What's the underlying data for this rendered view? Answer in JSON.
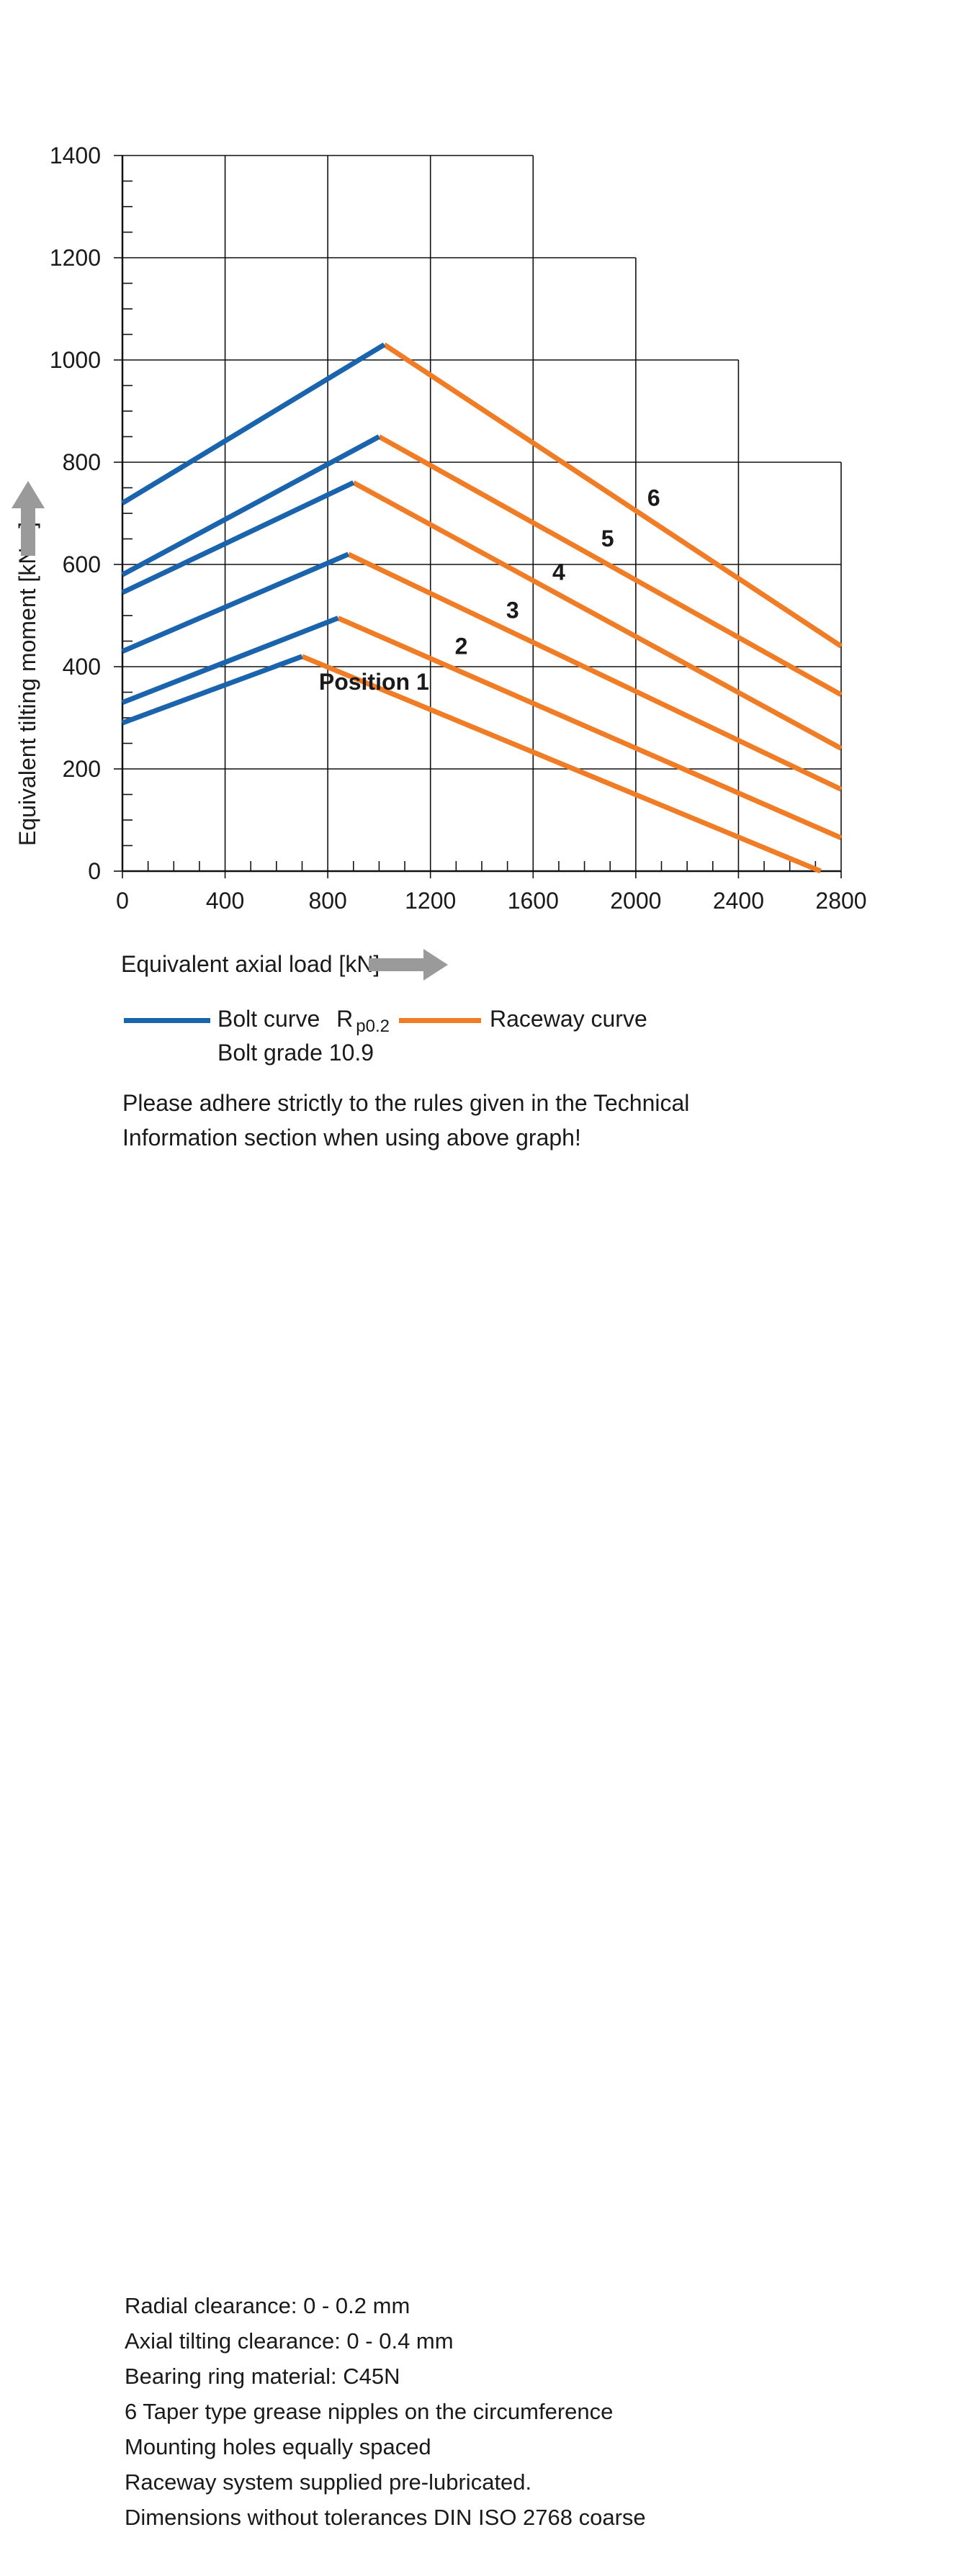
{
  "chart_data": {
    "type": "line",
    "xlabel": "Equivalent axial load [kN]",
    "ylabel": "Equivalent tilting moment [kNm]",
    "xlim": [
      0,
      2800
    ],
    "ylim": [
      0,
      1400
    ],
    "x_ticks": [
      "0",
      "400",
      "800",
      "1200",
      "1600",
      "2000",
      "2400",
      "2800"
    ],
    "y_ticks": [
      "0",
      "200",
      "400",
      "600",
      "800",
      "1000",
      "1200",
      "1400"
    ],
    "grid": true,
    "stepped_grid_top_right": true,
    "colors": {
      "bolt": "#1a63ad",
      "raceway": "#f07d26",
      "grid": "#111111",
      "arrow": "#9a9a9a"
    },
    "bolt_series": [
      {
        "name": "Bolt curve",
        "points": [
          [
            0,
            290
          ],
          [
            700,
            420
          ]
        ]
      },
      {
        "name": "Bolt curve",
        "points": [
          [
            0,
            330
          ],
          [
            840,
            495
          ]
        ]
      },
      {
        "name": "Bolt curve",
        "points": [
          [
            0,
            430
          ],
          [
            880,
            620
          ]
        ]
      },
      {
        "name": "Bolt curve",
        "points": [
          [
            0,
            545
          ],
          [
            900,
            760
          ]
        ]
      },
      {
        "name": "Bolt curve",
        "points": [
          [
            0,
            580
          ],
          [
            1000,
            850
          ]
        ]
      },
      {
        "name": "Bolt curve",
        "points": [
          [
            0,
            720
          ],
          [
            1020,
            1030
          ]
        ]
      }
    ],
    "raceway_series": [
      {
        "name": "Raceway curve",
        "label": "Position 1",
        "points": [
          [
            700,
            420
          ],
          [
            2720,
            0
          ]
        ]
      },
      {
        "name": "Raceway curve",
        "label": "2",
        "points": [
          [
            840,
            495
          ],
          [
            2800,
            65
          ]
        ]
      },
      {
        "name": "Raceway curve",
        "label": "3",
        "points": [
          [
            880,
            620
          ],
          [
            2800,
            160
          ]
        ]
      },
      {
        "name": "Raceway curve",
        "label": "4",
        "points": [
          [
            900,
            760
          ],
          [
            2800,
            240
          ]
        ]
      },
      {
        "name": "Raceway curve",
        "label": "5",
        "points": [
          [
            1000,
            850
          ],
          [
            2800,
            345
          ]
        ]
      },
      {
        "name": "Raceway curve",
        "label": "6",
        "points": [
          [
            1020,
            1030
          ],
          [
            2800,
            440
          ]
        ]
      }
    ],
    "annotations": [
      {
        "text": "Position 1",
        "x": 980,
        "y": 355
      },
      {
        "text": "2",
        "x": 1320,
        "y": 425
      },
      {
        "text": "3",
        "x": 1520,
        "y": 495
      },
      {
        "text": "4",
        "x": 1700,
        "y": 570
      },
      {
        "text": "5",
        "x": 1890,
        "y": 635
      },
      {
        "text": "6",
        "x": 2070,
        "y": 715
      }
    ]
  },
  "legend": {
    "bolt_label": "Bolt curve",
    "bolt_r": "R",
    "bolt_sub": "p0.2",
    "bolt_grade": "Bolt grade 10.9",
    "raceway_label": "Raceway curve"
  },
  "note": [
    "Please adhere strictly to the rules given in the Technical",
    "Information section when using above graph!"
  ],
  "specs": [
    "Radial clearance: 0 - 0.2 mm",
    "Axial tilting clearance: 0 - 0.4 mm",
    "Bearing ring material: C45N",
    "6 Taper type grease nipples on the circumference",
    "Mounting holes equally spaced",
    "Raceway system supplied pre-lubricated.",
    "Dimensions without tolerances DIN ISO 2768 coarse"
  ]
}
